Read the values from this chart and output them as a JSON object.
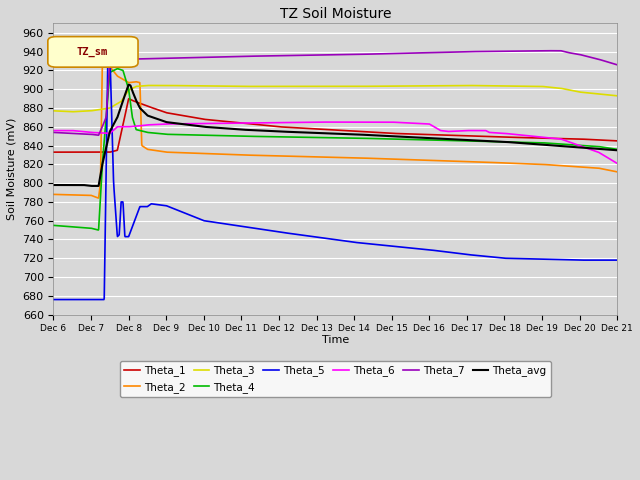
{
  "title": "TZ Soil Moisture",
  "ylabel": "Soil Moisture (mV)",
  "xlabel": "Time",
  "legend_label": "TZ_sm",
  "ylim": [
    660,
    970
  ],
  "yticks": [
    660,
    680,
    700,
    720,
    740,
    760,
    780,
    800,
    820,
    840,
    860,
    880,
    900,
    920,
    940,
    960
  ],
  "background_color": "#d8d8d8",
  "plot_bg_color": "#d8d8d8",
  "grid_color": "white",
  "series": {
    "Theta_1": {
      "color": "#cc0000",
      "lw": 1.2
    },
    "Theta_2": {
      "color": "#ff8800",
      "lw": 1.2
    },
    "Theta_3": {
      "color": "#dddd00",
      "lw": 1.2
    },
    "Theta_4": {
      "color": "#00bb00",
      "lw": 1.2
    },
    "Theta_5": {
      "color": "#0000ee",
      "lw": 1.2
    },
    "Theta_6": {
      "color": "#ff00ff",
      "lw": 1.2
    },
    "Theta_7": {
      "color": "#9900bb",
      "lw": 1.2
    },
    "Theta_avg": {
      "color": "#000000",
      "lw": 1.5
    }
  },
  "xtick_labels": [
    "Dec 6",
    "Dec 7",
    "Dec 8",
    "Dec 9",
    "Dec 10",
    "Dec 11",
    "Dec 12",
    "Dec 13",
    "Dec 14",
    "Dec 15",
    "Dec 16",
    "Dec 17",
    "Dec 18",
    "Dec 19",
    "Dec 20",
    "Dec 21"
  ],
  "n_days": 15
}
